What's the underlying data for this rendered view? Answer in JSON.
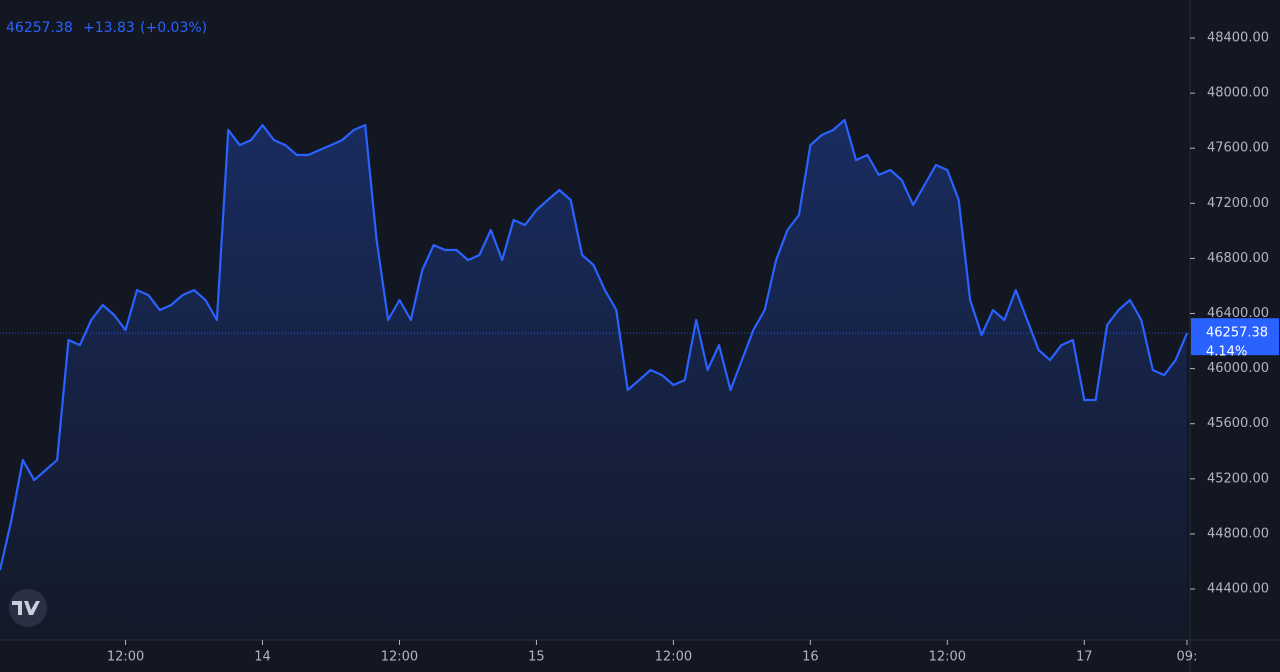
{
  "chart_data": {
    "type": "area",
    "header": {
      "last": "46257.38",
      "change": "+13.83",
      "change_pct": "(+0.03%)"
    },
    "last_label": "46257.38",
    "last_pct": "4.14%",
    "color": "#2962ff",
    "categories": [
      null,
      null,
      null,
      null,
      null,
      null,
      null,
      null,
      null,
      null,
      null,
      "12:00",
      null,
      null,
      null,
      null,
      null,
      null,
      null,
      null,
      null,
      null,
      null,
      "14",
      null,
      null,
      null,
      null,
      null,
      null,
      null,
      null,
      null,
      null,
      null,
      "12:00",
      null,
      null,
      null,
      null,
      null,
      null,
      null,
      null,
      null,
      null,
      null,
      "15",
      null,
      null,
      null,
      null,
      null,
      null,
      null,
      null,
      null,
      null,
      null,
      "12:00",
      null,
      null,
      null,
      null,
      null,
      null,
      null,
      null,
      null,
      null,
      null,
      "16",
      null,
      null,
      null,
      null,
      null,
      null,
      null,
      null,
      null,
      null,
      null,
      "12:00",
      null,
      null,
      null,
      null,
      null,
      null,
      null,
      null,
      null,
      null,
      null,
      "17",
      null,
      null,
      null,
      null,
      null,
      null,
      null,
      null,
      "09:"
    ],
    "values": [
      44538,
      44900,
      45336,
      45191,
      45264,
      45336,
      46208,
      46171,
      46353,
      46462,
      46389,
      46280,
      46570,
      46534,
      46425,
      46462,
      46534,
      46570,
      46498,
      46353,
      47732,
      47623,
      47660,
      47768,
      47660,
      47623,
      47551,
      47551,
      47587,
      47623,
      47660,
      47732,
      47768,
      46934,
      46353,
      46498,
      46353,
      46716,
      46897,
      46861,
      46861,
      46788,
      46825,
      47006,
      46788,
      47079,
      47043,
      47151,
      47224,
      47297,
      47224,
      46825,
      46752,
      46570,
      46425,
      45845,
      45917,
      45990,
      45953,
      45881,
      45917,
      46353,
      45990,
      46171,
      45845,
      46062,
      46280,
      46425,
      46788,
      47006,
      47115,
      47623,
      47696,
      47732,
      47805,
      47514,
      47551,
      47406,
      47442,
      47369,
      47188,
      47333,
      47478,
      47442,
      47224,
      46498,
      46244,
      46425,
      46353,
      46570,
      46353,
      46135,
      46062,
      46171,
      46208,
      45772,
      45772,
      46317,
      46425,
      46498,
      46353,
      45990,
      45953,
      46062,
      46257.38
    ],
    "ylim": [
      44030,
      48676
    ],
    "yticks": [
      {
        "value": 44400,
        "label": "44400.00"
      },
      {
        "value": 44800,
        "label": "44800.00"
      },
      {
        "value": 45200,
        "label": "45200.00"
      },
      {
        "value": 45600,
        "label": "45600.00"
      },
      {
        "value": 46000,
        "label": "46000.00"
      },
      {
        "value": 46400,
        "label": "46400.00"
      },
      {
        "value": 46800,
        "label": "46800.00"
      },
      {
        "value": 47200,
        "label": "47200.00"
      },
      {
        "value": 47600,
        "label": "47600.00"
      },
      {
        "value": 48000,
        "label": "48000.00"
      },
      {
        "value": 48400,
        "label": "48400.00"
      }
    ]
  }
}
